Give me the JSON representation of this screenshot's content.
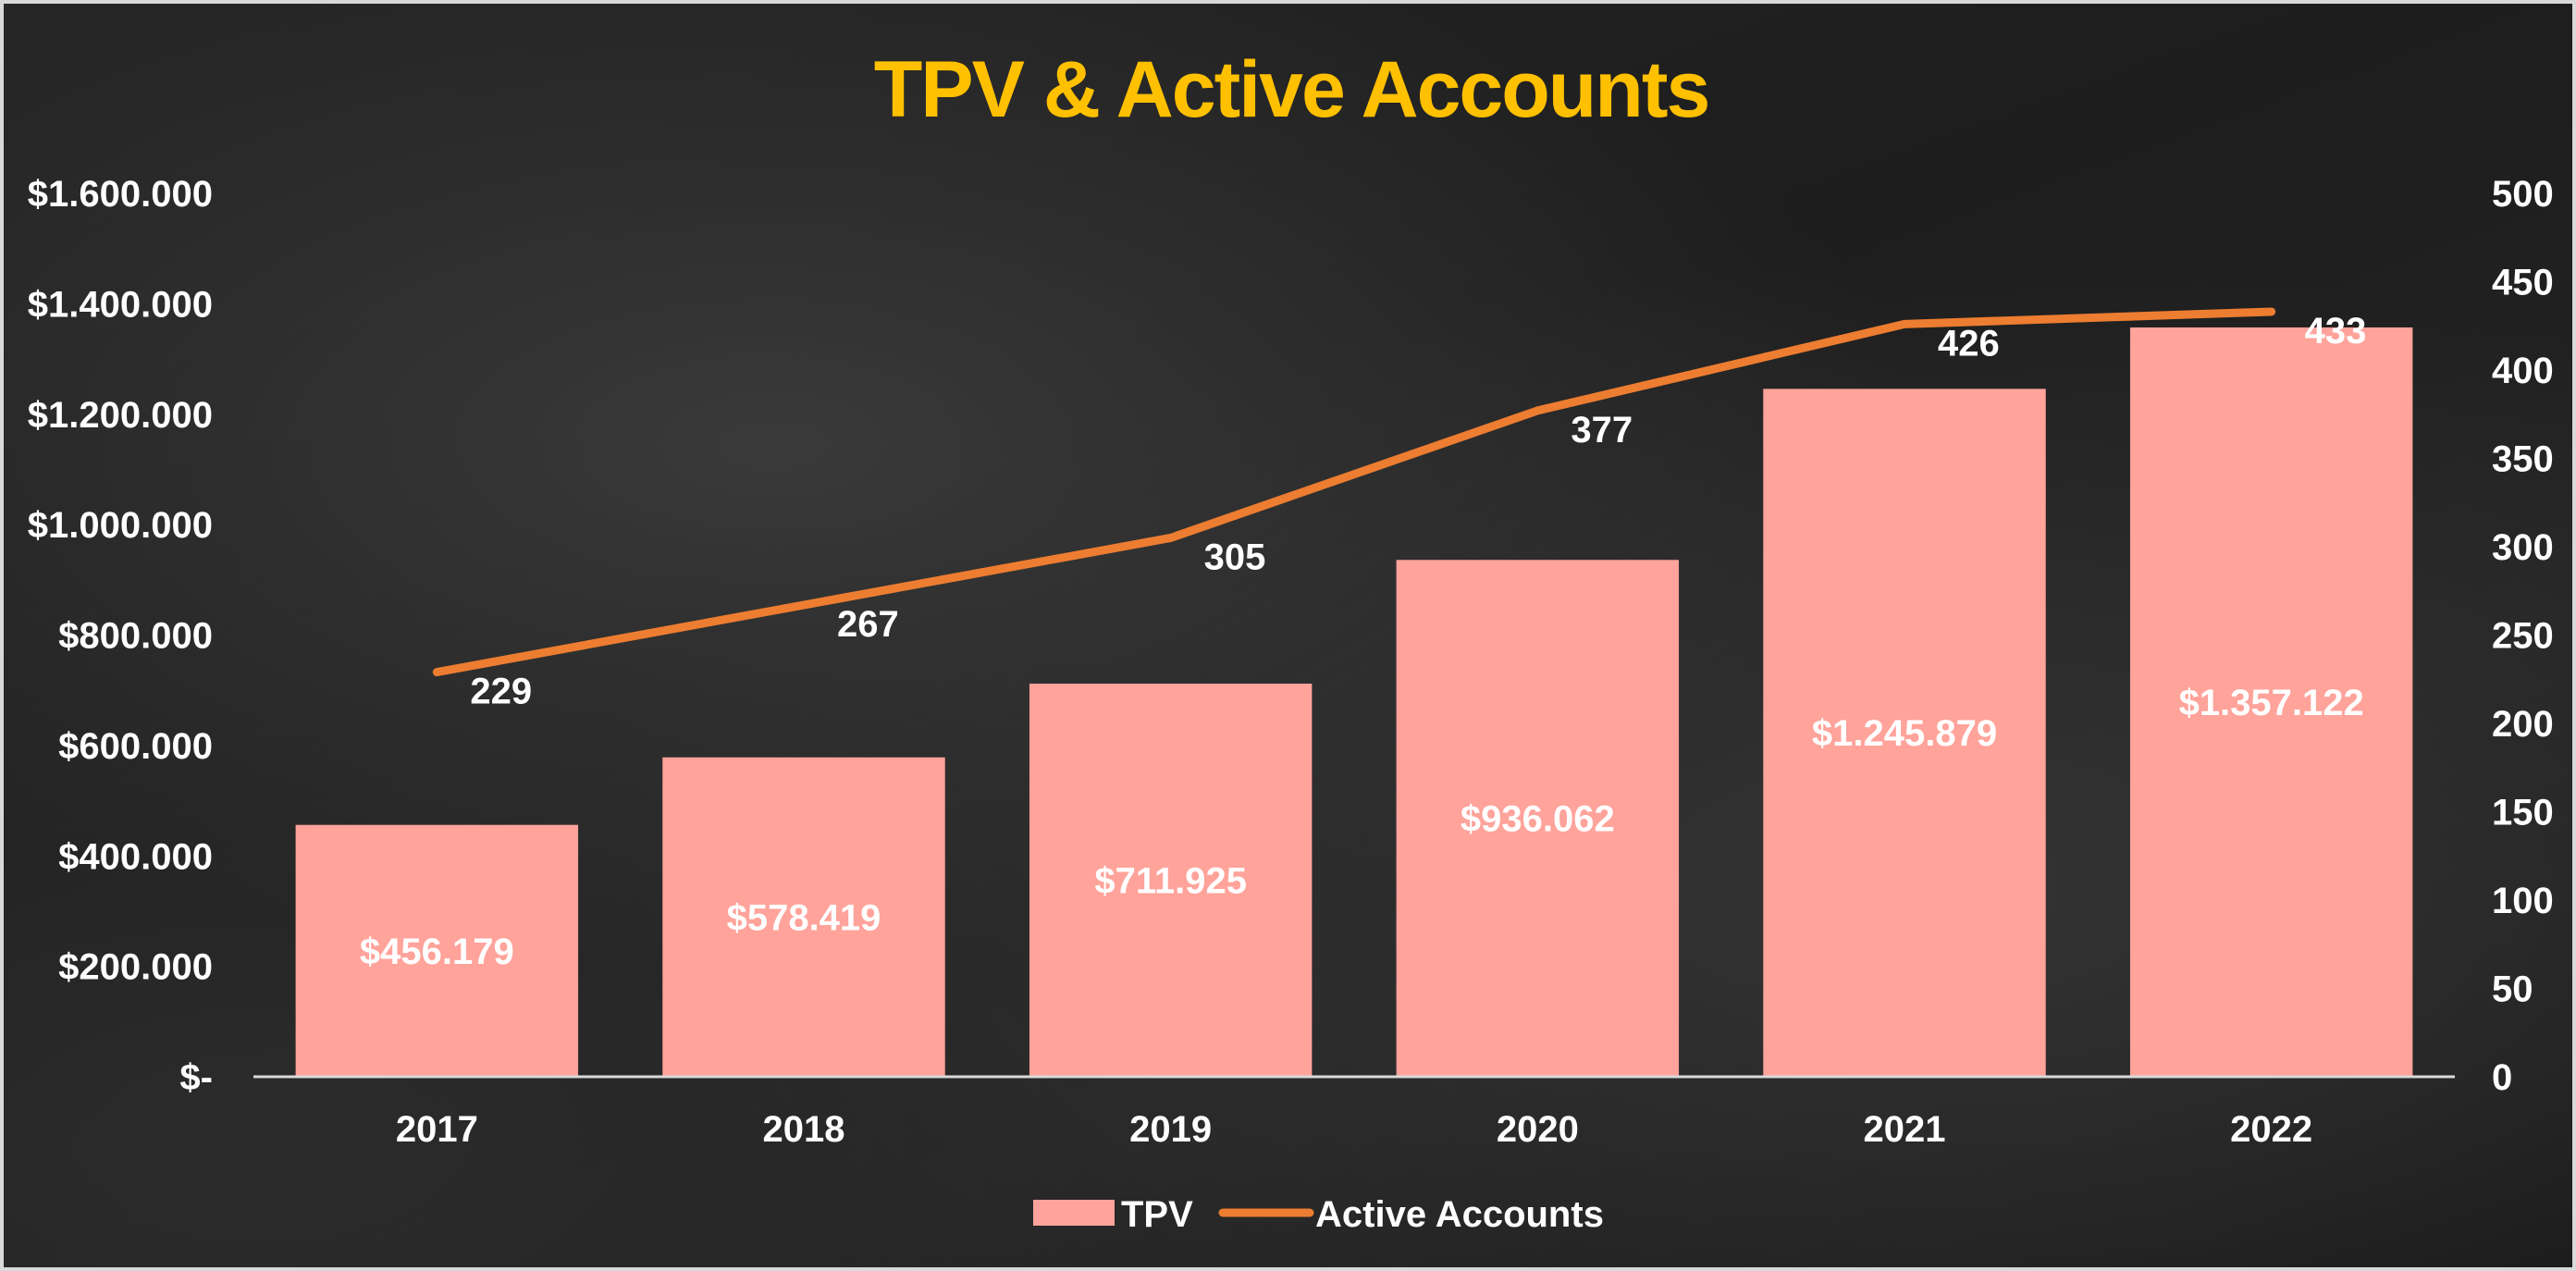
{
  "chart_data": {
    "type": "bar",
    "title": "TPV & Active Accounts",
    "categories": [
      "2017",
      "2018",
      "2019",
      "2020",
      "2021",
      "2022"
    ],
    "series": [
      {
        "name": "TPV",
        "type": "bar",
        "axis": "left",
        "values": [
          456179,
          578419,
          711925,
          936062,
          1245879,
          1357122
        ],
        "labels": [
          "$456.179",
          "$578.419",
          "$711.925",
          "$936.062",
          "$1.245.879",
          "$1.357.122"
        ]
      },
      {
        "name": "Active Accounts",
        "type": "line",
        "axis": "right",
        "values": [
          229,
          267,
          305,
          377,
          426,
          433
        ],
        "labels": [
          "229",
          "267",
          "305",
          "377",
          "426",
          "433"
        ]
      }
    ],
    "y_left": {
      "ylim": [
        0,
        1600000
      ],
      "ticks": [
        0,
        200000,
        400000,
        600000,
        800000,
        1000000,
        1200000,
        1400000,
        1600000
      ],
      "tick_labels": [
        "$-",
        "$200.000",
        "$400.000",
        "$600.000",
        "$800.000",
        "$1.000.000",
        "$1.200.000",
        "$1.400.000",
        "$1.600.000"
      ]
    },
    "y_right": {
      "ylim": [
        0,
        500
      ],
      "ticks": [
        0,
        50,
        100,
        150,
        200,
        250,
        300,
        350,
        400,
        450,
        500
      ],
      "tick_labels": [
        "0",
        "50",
        "100",
        "150",
        "200",
        "250",
        "300",
        "350",
        "400",
        "450",
        "500"
      ]
    },
    "grid": false,
    "legend_position": "bottom",
    "colors": {
      "title": "#FFC000",
      "bar": "#FFA39B",
      "line": "#ED7D31",
      "text": "#FFFFFF",
      "axis_line": "#D9D9D9"
    }
  }
}
